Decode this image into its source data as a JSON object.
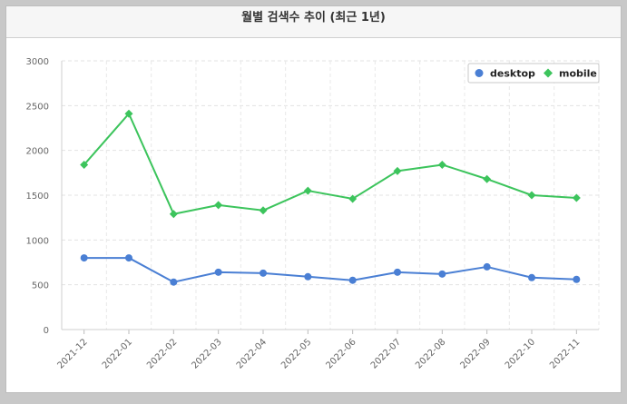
{
  "chart_title": "월별 검색수 추이 (최근 1년)",
  "chart_data": {
    "type": "line",
    "title": "월별 검색수 추이 (최근 1년)",
    "xlabel": "",
    "ylabel": "",
    "categories": [
      "2021-12",
      "2022-01",
      "2022-02",
      "2022-03",
      "2022-04",
      "2022-05",
      "2022-06",
      "2022-07",
      "2022-08",
      "2022-09",
      "2022-10",
      "2022-11"
    ],
    "ylim": [
      0,
      3000
    ],
    "yticks": [
      0,
      500,
      1000,
      1500,
      2000,
      2500,
      3000
    ],
    "grid": true,
    "legend_position": "top-right",
    "series": [
      {
        "name": "desktop",
        "color": "#4a7fd4",
        "marker": "circle",
        "values": [
          800,
          800,
          530,
          640,
          630,
          590,
          550,
          640,
          620,
          700,
          580,
          560
        ]
      },
      {
        "name": "mobile",
        "color": "#3cc45c",
        "marker": "diamond",
        "values": [
          1840,
          2410,
          1290,
          1390,
          1330,
          1550,
          1460,
          1770,
          1840,
          1680,
          1500,
          1470
        ]
      }
    ]
  }
}
